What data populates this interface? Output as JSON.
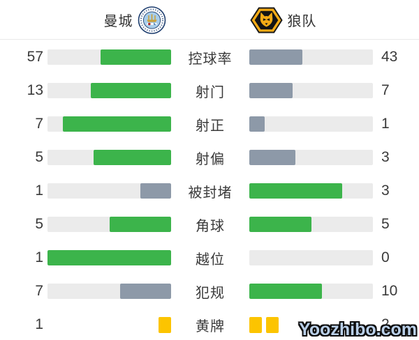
{
  "header": {
    "home_team": {
      "name": "曼城",
      "crest": "manchester-city-crest"
    },
    "away_team": {
      "name": "狼队",
      "crest": "wolves-crest"
    }
  },
  "stats": [
    {
      "label": "控球率",
      "home": 57,
      "away": 43
    },
    {
      "label": "射门",
      "home": 13,
      "away": 7
    },
    {
      "label": "射正",
      "home": 7,
      "away": 1
    },
    {
      "label": "射偏",
      "home": 5,
      "away": 3
    },
    {
      "label": "被封堵",
      "home": 1,
      "away": 3
    },
    {
      "label": "角球",
      "home": 5,
      "away": 5
    },
    {
      "label": "越位",
      "home": 1,
      "away": 0
    },
    {
      "label": "犯规",
      "home": 7,
      "away": 10
    },
    {
      "label": "黄牌",
      "home": 1,
      "away": 2,
      "type": "cards"
    }
  ],
  "colors": {
    "winner_bar": "#3cb44b",
    "loser_bar": "#8d99a8",
    "bar_track": "#ebebeb",
    "yellow_card": "#fcc400",
    "text": "#3a3a3a",
    "divider": "#e9e9e9",
    "watermark_fill": "#b9cfe8",
    "watermark_outline": "#0d0d0d"
  },
  "watermark": {
    "text": "Yoozhibo.com"
  }
}
